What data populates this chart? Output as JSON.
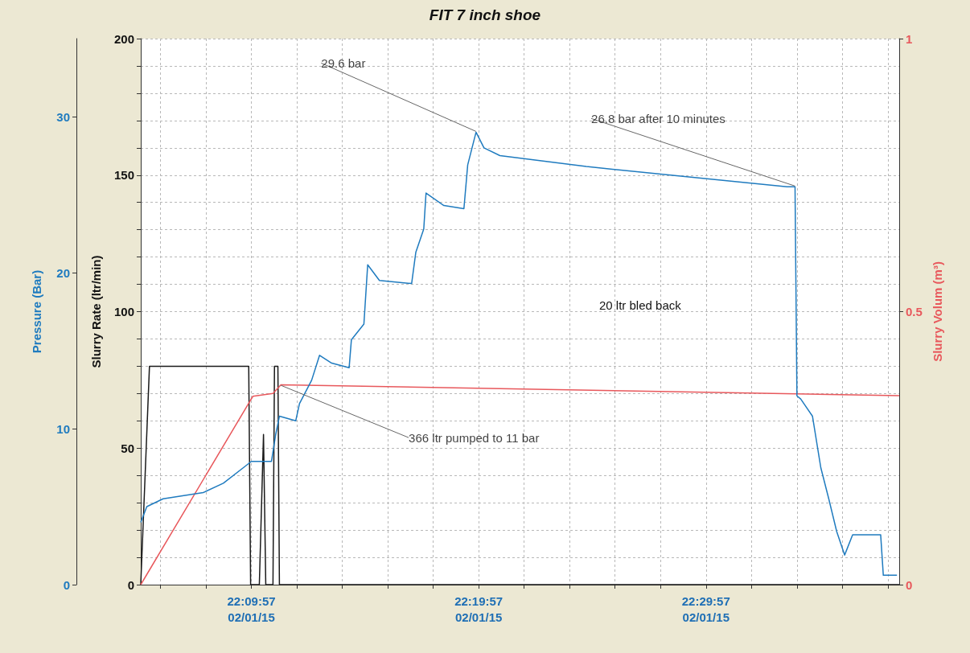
{
  "chart_data": {
    "type": "line",
    "title": "FIT 7 inch shoe",
    "ylabel": "Slurry Rate (ltr/min)",
    "y2label": "Slurry Volum (m³)",
    "y3label": "Pressure (Bar)",
    "xlim": [
      "--01-02T22:05:05",
      "--01-02T22:38:27"
    ],
    "xticks": [
      {
        "value": "--01-02T22:05:57",
        "label": null
      },
      {
        "value": "--01-02T22:07:57",
        "label": null
      },
      {
        "value": "--01-02T22:09:57",
        "label": "22:09:57\n02/01/15"
      },
      {
        "value": "--01-02T22:11:57",
        "label": null
      },
      {
        "value": "--01-02T22:13:57",
        "label": null
      },
      {
        "value": "--01-02T22:15:57",
        "label": null
      },
      {
        "value": "--01-02T22:17:57",
        "label": null
      },
      {
        "value": "--01-02T22:19:57",
        "label": "22:19:57\n02/01/15"
      },
      {
        "value": "--01-02T22:21:57",
        "label": null
      },
      {
        "value": "--01-02T22:23:57",
        "label": null
      },
      {
        "value": "--01-02T22:25:57",
        "label": null
      },
      {
        "value": "--01-02T22:27:57",
        "label": null
      },
      {
        "value": "--01-02T22:29:57",
        "label": "22:29:57\n02/01/15"
      },
      {
        "value": "--01-02T22:31:57",
        "label": null
      },
      {
        "value": "--01-02T22:33:57",
        "label": null
      },
      {
        "value": "--01-02T22:35:57",
        "label": null
      },
      {
        "value": "--01-02T22:37:57",
        "label": null
      }
    ],
    "ylim": [
      0,
      200
    ],
    "yticks": [
      0,
      {
        "value": 10,
        "label": null
      },
      {
        "value": 20,
        "label": null
      },
      {
        "value": 30,
        "label": null
      },
      {
        "value": 40,
        "label": null
      },
      50,
      {
        "value": 60,
        "label": null
      },
      {
        "value": 70,
        "label": null
      },
      {
        "value": 80,
        "label": null
      },
      {
        "value": 90,
        "label": null
      },
      100,
      {
        "value": 110,
        "label": null
      },
      {
        "value": 120,
        "label": null
      },
      {
        "value": 130,
        "label": null
      },
      {
        "value": 140,
        "label": null
      },
      150,
      {
        "value": 160,
        "label": null
      },
      {
        "value": 170,
        "label": null
      },
      {
        "value": 180,
        "label": null
      },
      {
        "value": 190,
        "label": null
      },
      200
    ],
    "y2lim": [
      0,
      1
    ],
    "y2ticks": [
      0,
      0.5,
      1
    ],
    "y3lim": [
      0,
      35
    ],
    "y3ticks": [
      0,
      10,
      20,
      30
    ],
    "grid": true,
    "marker": "none",
    "line_style": "solid",
    "series": [
      {
        "color": "#1a1a1a",
        "x": [
          "--01-02T22:05:05",
          "--01-02T22:05:28",
          "--01-02T22:09:50",
          "--01-02T22:09:55",
          "--01-02T22:10:18",
          "--01-02T22:10:29",
          "--01-02T22:10:35",
          "--01-02T22:10:54",
          "--01-02T22:10:58",
          "--01-02T22:11:07",
          "--01-02T22:11:11",
          "--01-02T22:38:27"
        ],
        "values": [
          0,
          80,
          80,
          0,
          0,
          55,
          0,
          0,
          80,
          80,
          0,
          0
        ]
      },
      {
        "color": "#e8585c",
        "axis": "y2",
        "x": [
          "--01-02T22:05:05",
          "--01-02T22:10:01",
          "--01-02T22:10:54",
          "--01-02T22:11:15",
          "--01-02T22:38:27"
        ],
        "values": [
          0,
          0.345,
          0.35,
          0.366,
          0.346
        ]
      },
      {
        "color": "#1f7bbf",
        "axis": "y3",
        "x": [
          "--01-02T22:05:05",
          "--01-02T22:05:21",
          "--01-02T22:06:04",
          "--01-02T22:07:50",
          "--01-02T22:08:43",
          "--01-02T22:09:36",
          "--01-02T22:09:57",
          "--01-02T22:10:50",
          "--01-02T22:11:01",
          "--01-02T22:11:11",
          "--01-02T22:11:54",
          "--01-02T22:12:04",
          "--01-02T22:12:36",
          "--01-02T22:12:57",
          "--01-02T22:13:29",
          "--01-02T22:14:15",
          "--01-02T22:14:21",
          "--01-02T22:14:54",
          "--01-02T22:15:04",
          "--01-02T22:15:35",
          "--01-02T22:17:00",
          "--01-02T22:17:11",
          "--01-02T22:17:32",
          "--01-02T22:17:38",
          "--01-02T22:18:25",
          "--01-02T22:19:18",
          "--01-02T22:19:28",
          "--01-02T22:19:50",
          "--01-02T22:20:11",
          "--01-02T22:20:53",
          "--01-02T22:24:41",
          "--01-02T22:28:45",
          "--01-02T22:33:31",
          "--01-02T22:33:52",
          "--01-02T22:33:57",
          "--01-02T22:34:07",
          "--01-02T22:34:38",
          "--01-02T22:35:00",
          "--01-02T22:35:21",
          "--01-02T22:35:42",
          "--01-02T22:36:03",
          "--01-02T22:36:24",
          "--01-02T22:37:38",
          "--01-02T22:37:45",
          "--01-02T22:38:21"
        ],
        "values": [
          4.0,
          5.0,
          5.5,
          5.9,
          6.5,
          7.5,
          7.9,
          7.9,
          9.6,
          10.8,
          10.5,
          11.6,
          13.1,
          14.7,
          14.2,
          13.9,
          15.7,
          16.7,
          20.5,
          19.5,
          19.3,
          21.3,
          22.8,
          25.1,
          24.3,
          24.1,
          26.9,
          29.0,
          28.0,
          27.5,
          26.8,
          26.2,
          25.5,
          25.5,
          12.1,
          11.9,
          10.8,
          7.5,
          5.5,
          3.4,
          1.9,
          3.2,
          3.2,
          0.6,
          0.6
        ]
      }
    ],
    "annotations": [
      {
        "text": "29.6 bar",
        "x": "--01-02T22:19:50",
        "y": 166
      },
      {
        "text": "26.8 bar after 10 minutes",
        "x": "--01-02T22:33:52",
        "y": 146
      },
      {
        "text": "366 ltr pumped to 11 bar",
        "x": "--01-02T22:11:15",
        "y": 73
      },
      "20 ltr bled back"
    ]
  }
}
